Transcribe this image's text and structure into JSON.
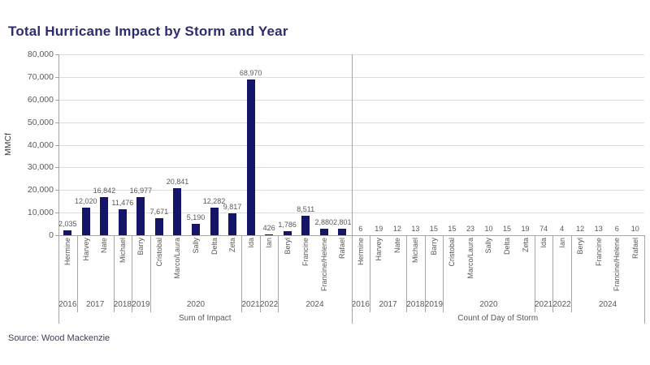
{
  "title": "Total Hurricane Impact by Storm and Year",
  "source": "Source: Wood Mackenzie",
  "colors": {
    "title": "#2D2D72",
    "bar": "#141468",
    "grid": "#DCDCDC",
    "axis": "#A6A6A6",
    "label": "#595959",
    "source": "#3E3E56"
  },
  "chart_data": {
    "type": "bar",
    "title": "Total Hurricane Impact by Storm and Year",
    "ylabel": "MMCf",
    "xlabel": "",
    "ylim": [
      0,
      80000
    ],
    "ytick_step": 10000,
    "yticks": [
      "0",
      "10,000",
      "20,000",
      "30,000",
      "40,000",
      "50,000",
      "60,000",
      "70,000",
      "80,000"
    ],
    "grid": true,
    "legend": "none",
    "categories": [
      "Hermine",
      "Harvey",
      "Nate",
      "Michael",
      "Barry",
      "Cristobal",
      "Marco/Laura",
      "Sally",
      "Delta",
      "Zeta",
      "Ida",
      "Ian",
      "Beryl",
      "Francine",
      "Francine/Helene",
      "Rafael"
    ],
    "year_groups": [
      {
        "year": "2016",
        "count": 1
      },
      {
        "year": "2017",
        "count": 2
      },
      {
        "year": "2018",
        "count": 1
      },
      {
        "year": "2019",
        "count": 1
      },
      {
        "year": "2020",
        "count": 5
      },
      {
        "year": "2021",
        "count": 1
      },
      {
        "year": "2022",
        "count": 1
      },
      {
        "year": "2024",
        "count": 4
      }
    ],
    "sections": [
      {
        "label": "Sum of Impact",
        "values": [
          2035,
          12020,
          16842,
          11476,
          16977,
          7671,
          20841,
          5190,
          12282,
          9817,
          68970,
          426,
          1786,
          8511,
          2880,
          2801
        ]
      },
      {
        "label": "Count of Day of Storm",
        "values": [
          6,
          19,
          12,
          13,
          15,
          15,
          23,
          10,
          15,
          19,
          74,
          4,
          12,
          13,
          6,
          10
        ]
      }
    ]
  }
}
